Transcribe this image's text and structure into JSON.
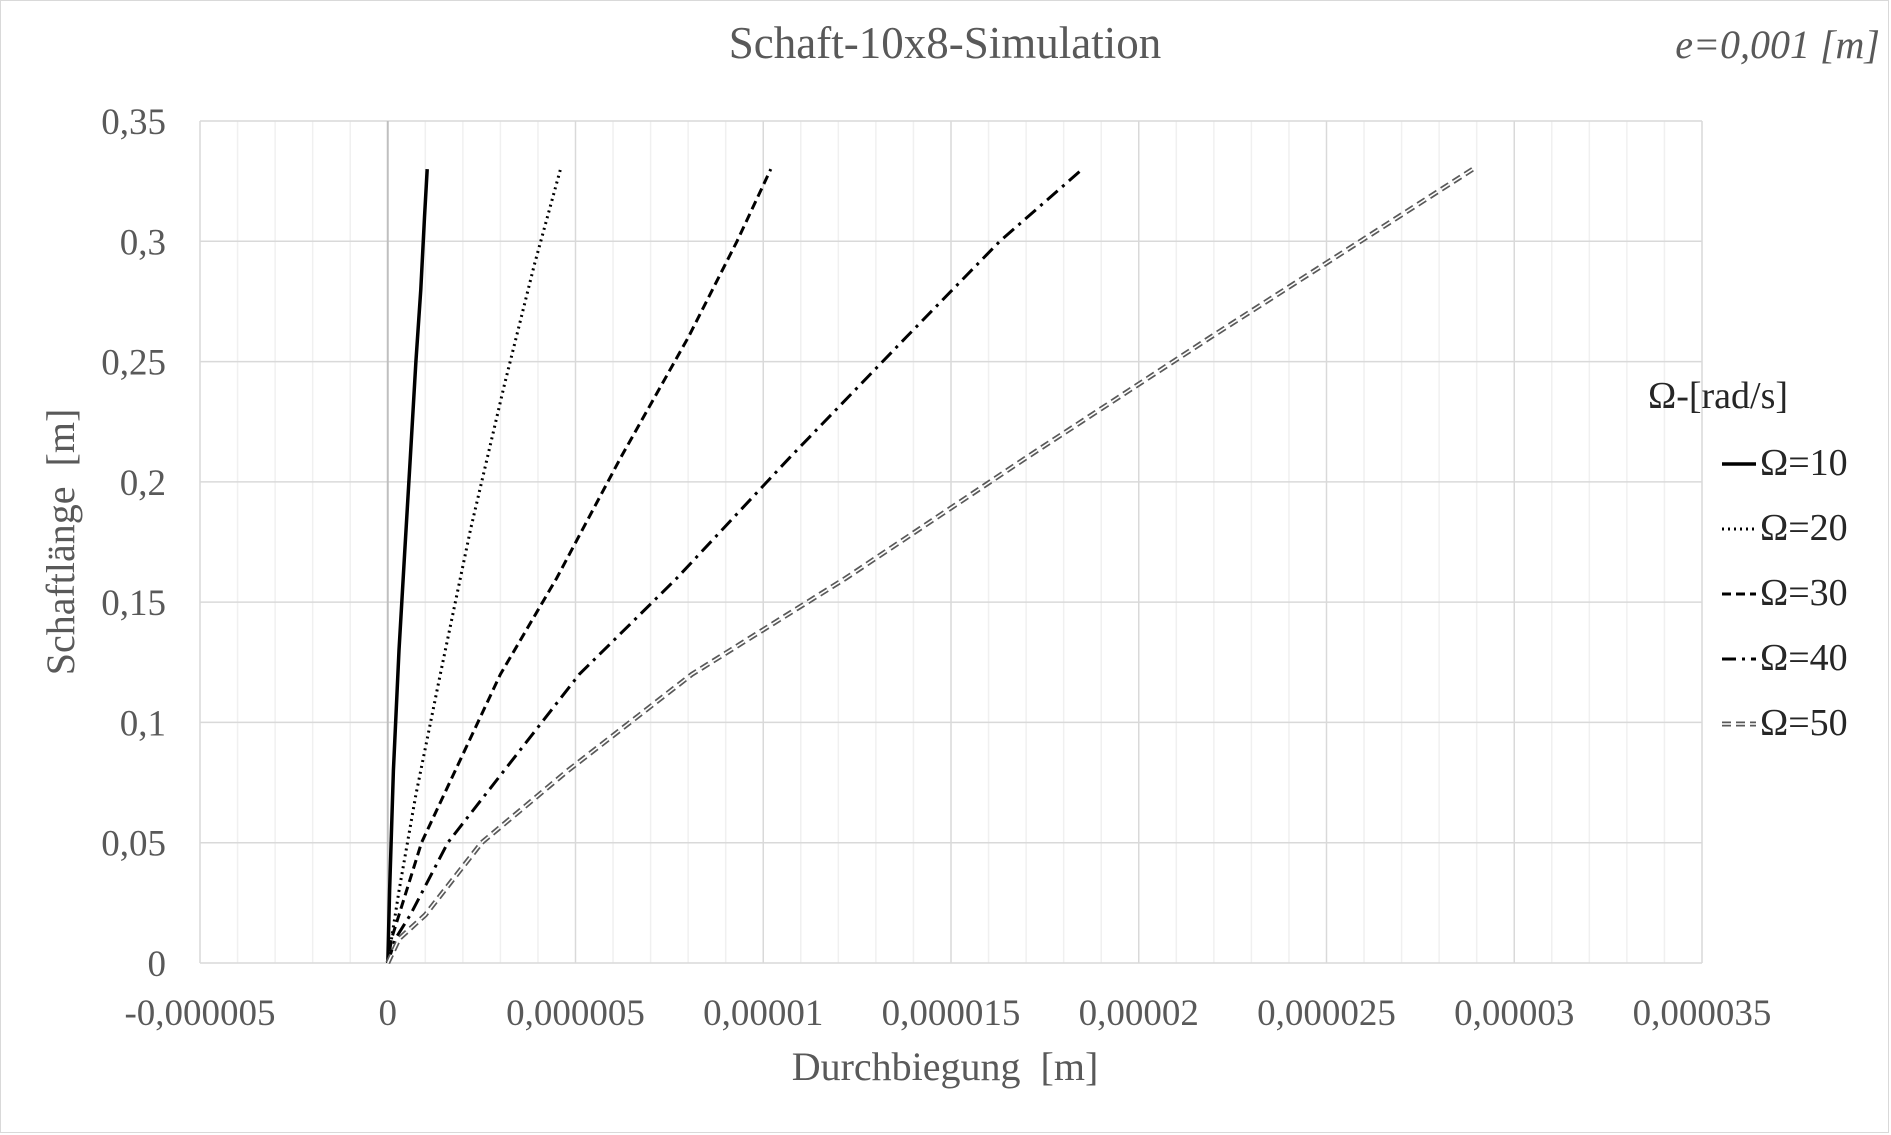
{
  "chart_data": {
    "type": "line",
    "title": "Schaft-10x8-Simulation",
    "annotation": "e=0,001 [m]",
    "xlabel": "Durchbiegung  [m]",
    "ylabel": "Schaftlänge  [m]",
    "xlim": [
      -5e-06,
      3.5e-05
    ],
    "ylim": [
      0,
      0.35
    ],
    "x_ticks": [
      -5e-06,
      0,
      5e-06,
      1e-05,
      1.5e-05,
      2e-05,
      2.5e-05,
      3e-05,
      3.5e-05
    ],
    "x_tick_labels": [
      "-0,000005",
      "0",
      "0,000005",
      "0,00001",
      "0,000015",
      "0,00002",
      "0,000025",
      "0,00003",
      "0,000035"
    ],
    "y_ticks": [
      0,
      0.05,
      0.1,
      0.15,
      0.2,
      0.25,
      0.3,
      0.35
    ],
    "y_tick_labels": [
      "0",
      "0,05",
      "0,1",
      "0,15",
      "0,2",
      "0,25",
      "0,3",
      "0,35"
    ],
    "grid": true,
    "legend": {
      "title": "Ω-[rad/s]",
      "placement": "right"
    },
    "series": [
      {
        "name": "Ω=10",
        "dash": "solid",
        "color": "#000000",
        "x": [
          0,
          5e-08,
          1.5e-07,
          3e-07,
          4.5e-07,
          6e-07,
          7.5e-07,
          8.8e-07,
          9.8e-07,
          1.05e-06
        ],
        "y": [
          0,
          0.03,
          0.08,
          0.13,
          0.17,
          0.21,
          0.25,
          0.28,
          0.31,
          0.33
        ]
      },
      {
        "name": "Ω=20",
        "dash": "dotted",
        "color": "#000000",
        "x": [
          0,
          1e-07,
          3e-07,
          7.5e-07,
          1.4e-06,
          2.2e-06,
          3.1e-06,
          3.9e-06,
          4.6e-06
        ],
        "y": [
          0,
          0.01,
          0.03,
          0.07,
          0.12,
          0.18,
          0.24,
          0.29,
          0.33
        ]
      },
      {
        "name": "Ω=30",
        "dash": "dashed",
        "color": "#000000",
        "x": [
          0,
          1e-07,
          3e-07,
          9e-07,
          1.8e-06,
          3e-06,
          4.5e-06,
          6.2e-06,
          8e-06,
          9.3e-06,
          1.02e-05
        ],
        "y": [
          0,
          0.01,
          0.02,
          0.05,
          0.08,
          0.12,
          0.16,
          0.21,
          0.26,
          0.3,
          0.33
        ]
      },
      {
        "name": "Ω=40",
        "dash": "dashdot",
        "color": "#000000",
        "x": [
          0,
          2e-07,
          6e-07,
          1.6e-06,
          3.1e-06,
          5.1e-06,
          7.7e-06,
          1.07e-05,
          1.38e-05,
          1.63e-05,
          1.85e-05
        ],
        "y": [
          0,
          0.01,
          0.02,
          0.05,
          0.08,
          0.12,
          0.16,
          0.21,
          0.26,
          0.3,
          0.33
        ]
      },
      {
        "name": "Ω=50",
        "dash": "double",
        "color": "#595959",
        "x": [
          0,
          3e-07,
          1e-06,
          2.5e-06,
          4.8e-06,
          8.1e-06,
          1.22e-05,
          1.7e-05,
          2.19e-05,
          2.59e-05,
          2.89e-05
        ],
        "y": [
          0,
          0.01,
          0.02,
          0.05,
          0.08,
          0.12,
          0.16,
          0.21,
          0.26,
          0.3,
          0.33
        ]
      }
    ]
  }
}
